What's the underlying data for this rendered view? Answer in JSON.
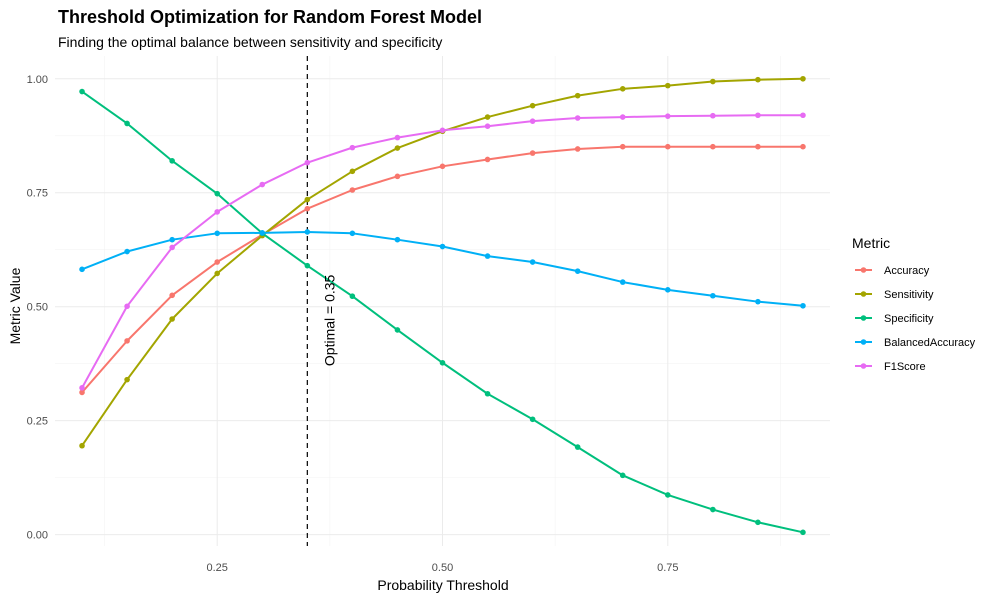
{
  "chart_data": {
    "type": "line",
    "title": "Threshold Optimization for Random Forest Model",
    "subtitle": "Finding the optimal balance between sensitivity and specificity",
    "xlabel": "Probability Threshold",
    "ylabel": "Metric Value",
    "xlim": [
      0.07,
      0.93
    ],
    "ylim": [
      -0.025,
      1.05
    ],
    "x_ticks": [
      0.25,
      0.5,
      0.75
    ],
    "x_tick_labels": [
      "0.25",
      "0.50",
      "0.75"
    ],
    "y_ticks": [
      0,
      0.25,
      0.5,
      0.75,
      1.0
    ],
    "y_tick_labels": [
      "0.00",
      "0.25",
      "0.50",
      "0.75",
      "1.00"
    ],
    "grid": true,
    "legend_title": "Metric",
    "legend_position": "right",
    "x": [
      0.1,
      0.15,
      0.2,
      0.25,
      0.3,
      0.35,
      0.4,
      0.45,
      0.5,
      0.55,
      0.6,
      0.65,
      0.7,
      0.75,
      0.8,
      0.85,
      0.9
    ],
    "series": [
      {
        "name": "Accuracy",
        "color": "#F8766D",
        "values": [
          0.312,
          0.425,
          0.525,
          0.598,
          0.658,
          0.715,
          0.756,
          0.786,
          0.808,
          0.823,
          0.837,
          0.846,
          0.851,
          0.851,
          0.851,
          0.851,
          0.851
        ]
      },
      {
        "name": "Sensitivity",
        "color": "#A3A500",
        "values": [
          0.195,
          0.34,
          0.473,
          0.573,
          0.656,
          0.735,
          0.797,
          0.848,
          0.885,
          0.916,
          0.941,
          0.963,
          0.978,
          0.985,
          0.994,
          0.998,
          1.0
        ]
      },
      {
        "name": "Specificity",
        "color": "#00BF7D",
        "values": [
          0.972,
          0.902,
          0.82,
          0.748,
          0.661,
          0.59,
          0.523,
          0.449,
          0.377,
          0.309,
          0.253,
          0.192,
          0.13,
          0.087,
          0.055,
          0.027,
          0.005
        ]
      },
      {
        "name": "BalancedAccuracy",
        "color": "#00B0F6",
        "values": [
          0.582,
          0.621,
          0.647,
          0.661,
          0.662,
          0.664,
          0.661,
          0.647,
          0.632,
          0.611,
          0.598,
          0.578,
          0.554,
          0.537,
          0.524,
          0.511,
          0.502
        ]
      },
      {
        "name": "F1Score",
        "color": "#E76BF3",
        "values": [
          0.322,
          0.501,
          0.63,
          0.708,
          0.768,
          0.816,
          0.849,
          0.871,
          0.887,
          0.896,
          0.907,
          0.914,
          0.916,
          0.918,
          0.919,
          0.92,
          0.92
        ]
      }
    ],
    "reference_line": {
      "x": 0.35,
      "style": "dashed",
      "color": "#000000"
    },
    "annotation": {
      "text": "Optimal = 0.35",
      "x": 0.4,
      "y": 0.47,
      "rotation": -90
    }
  }
}
